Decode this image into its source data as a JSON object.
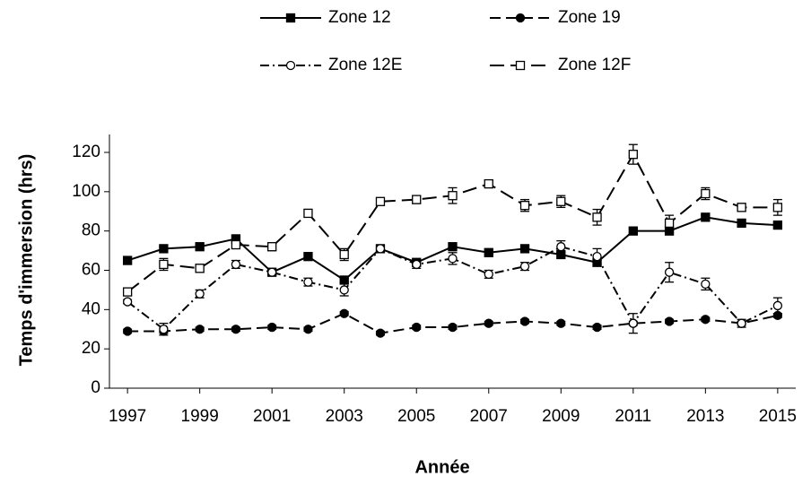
{
  "chart_data": {
    "type": "line",
    "x_label": "Année",
    "y_label": "Temps d'immersion (hrs)",
    "xlim": [
      1996.5,
      2015.5
    ],
    "xticks": [
      1997,
      1999,
      2001,
      2003,
      2005,
      2007,
      2009,
      2011,
      2013,
      2015
    ],
    "ylim": [
      0,
      120
    ],
    "yticks": [
      0,
      20,
      40,
      60,
      80,
      100,
      120
    ],
    "grid": false,
    "x": [
      1997,
      1998,
      1999,
      2000,
      2001,
      2002,
      2003,
      2004,
      2005,
      2006,
      2007,
      2008,
      2009,
      2010,
      2011,
      2012,
      2013,
      2014,
      2015
    ],
    "series": [
      {
        "name": "Zone 12",
        "color": "#000000",
        "line_style": "solid",
        "marker": "filled-square",
        "values": [
          65,
          71,
          72,
          76,
          59,
          67,
          55,
          71,
          64,
          72,
          69,
          71,
          68,
          64,
          80,
          80,
          87,
          84,
          83
        ],
        "errors": [
          1,
          1,
          1,
          1,
          1,
          1,
          1,
          1,
          1,
          1,
          1,
          1,
          1,
          1,
          1,
          1,
          1,
          1,
          1
        ]
      },
      {
        "name": "Zone 19",
        "color": "#000000",
        "line_style": "dashed",
        "marker": "filled-circle",
        "values": [
          29,
          29,
          30,
          30,
          31,
          30,
          38,
          28,
          31,
          31,
          33,
          34,
          33,
          31,
          33,
          34,
          35,
          33,
          37
        ],
        "errors": [
          1,
          1,
          1,
          1,
          1,
          1,
          1,
          1,
          1,
          1,
          1,
          1,
          1,
          1,
          1,
          1,
          1,
          1,
          1
        ]
      },
      {
        "name": "Zone 12E",
        "color": "#000000",
        "line_style": "dashdot",
        "marker": "open-circle",
        "values": [
          44,
          30,
          48,
          63,
          59,
          54,
          50,
          71,
          63,
          66,
          58,
          62,
          72,
          67,
          33,
          59,
          53,
          33,
          42
        ],
        "errors": [
          1,
          3,
          2,
          2,
          1,
          2,
          3,
          1,
          2,
          3,
          2,
          2,
          3,
          4,
          5,
          5,
          3,
          2,
          4
        ]
      },
      {
        "name": "Zone 12F",
        "color": "#000000",
        "line_style": "longdash",
        "marker": "open-square",
        "values": [
          49,
          63,
          61,
          73,
          72,
          89,
          68,
          95,
          96,
          98,
          104,
          93,
          95,
          87,
          119,
          84,
          99,
          92,
          92
        ],
        "errors": [
          1,
          3,
          2,
          2,
          2,
          2,
          3,
          1,
          2,
          4,
          2,
          3,
          3,
          4,
          5,
          4,
          3,
          2,
          4
        ]
      }
    ]
  }
}
